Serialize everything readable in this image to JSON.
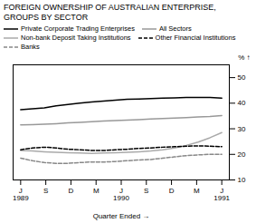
{
  "chart_data": {
    "type": "line",
    "title": "FOREIGN OWNERSHIP OF AUSTRALIAN ENTERPRISE,\nGROUPS BY SECTOR",
    "xlabel": "Quarter Ended",
    "ylabel": "%",
    "x": [
      0,
      0.47058823529411764,
      0.9411764705882353,
      1.411764705882353,
      1.8823529411764706,
      2.3529411764705883,
      2.823529411764706,
      3.2941176470588234,
      3.764705882352941,
      4.235294117647059,
      4.705882352941177,
      5.176470588235294,
      5.647058823529412,
      6.117647058823529,
      6.588235294117647,
      7.0588235294117645,
      7.529411764705882,
      8
    ],
    "xlim": [
      -0.3,
      8.3
    ],
    "xticks": [
      {
        "value": 0,
        "label": "J"
      },
      {
        "value": 1,
        "label": "S"
      },
      {
        "value": 2,
        "label": "D"
      },
      {
        "value": 3,
        "label": "M"
      },
      {
        "value": 4,
        "label": "J"
      },
      {
        "value": 5,
        "label": "S"
      },
      {
        "value": 6,
        "label": "D"
      },
      {
        "value": 7,
        "label": "M"
      },
      {
        "value": 8,
        "label": "J"
      }
    ],
    "annotations": [
      {
        "x": 0,
        "text": "1989"
      },
      {
        "x": 4,
        "text": "1990"
      },
      {
        "x": 8,
        "text": "1991"
      }
    ],
    "ylim": [
      10,
      55
    ],
    "yticks": [
      10,
      20,
      30,
      40,
      50
    ],
    "grid": false,
    "series": [
      {
        "name": "Private Corporate Trading Enterprises",
        "color": "#000000",
        "line_style": "solid",
        "values": [
          37.5,
          37.8,
          38.2,
          39.0,
          39.5,
          40.0,
          40.5,
          40.8,
          41.2,
          41.5,
          41.6,
          41.8,
          42.0,
          42.1,
          42.2,
          42.2,
          42.2,
          42.0
        ]
      },
      {
        "name": "All Sectors",
        "color": "#999999",
        "line_style": "solid",
        "values": [
          31.5,
          31.6,
          31.8,
          32.0,
          32.3,
          32.5,
          32.8,
          33.0,
          33.2,
          33.4,
          33.6,
          33.8,
          34.0,
          34.2,
          34.4,
          34.6,
          34.8,
          35.2
        ]
      },
      {
        "name": "Non-bank Deposit Taking Institutions",
        "color": "#aaaaaa",
        "line_style": "solid",
        "values": [
          21.5,
          21.3,
          21.0,
          20.8,
          20.6,
          20.5,
          20.4,
          20.5,
          20.6,
          20.8,
          21.0,
          21.3,
          21.8,
          22.5,
          23.5,
          24.8,
          26.5,
          28.5
        ]
      },
      {
        "name": "Other Financial Institutions",
        "color": "#000000",
        "line_style": "dashed",
        "values": [
          21.8,
          22.5,
          22.8,
          22.5,
          22.0,
          21.8,
          21.5,
          21.5,
          21.8,
          22.0,
          22.3,
          22.5,
          22.8,
          23.0,
          23.2,
          23.3,
          23.2,
          23.0
        ]
      },
      {
        "name": "Banks",
        "color": "#888888",
        "line_style": "dashed",
        "values": [
          18.5,
          17.5,
          16.8,
          16.5,
          16.5,
          16.8,
          17.0,
          17.0,
          17.2,
          17.5,
          17.8,
          18.0,
          18.5,
          19.0,
          19.5,
          19.8,
          20.0,
          20.0
        ]
      }
    ]
  }
}
